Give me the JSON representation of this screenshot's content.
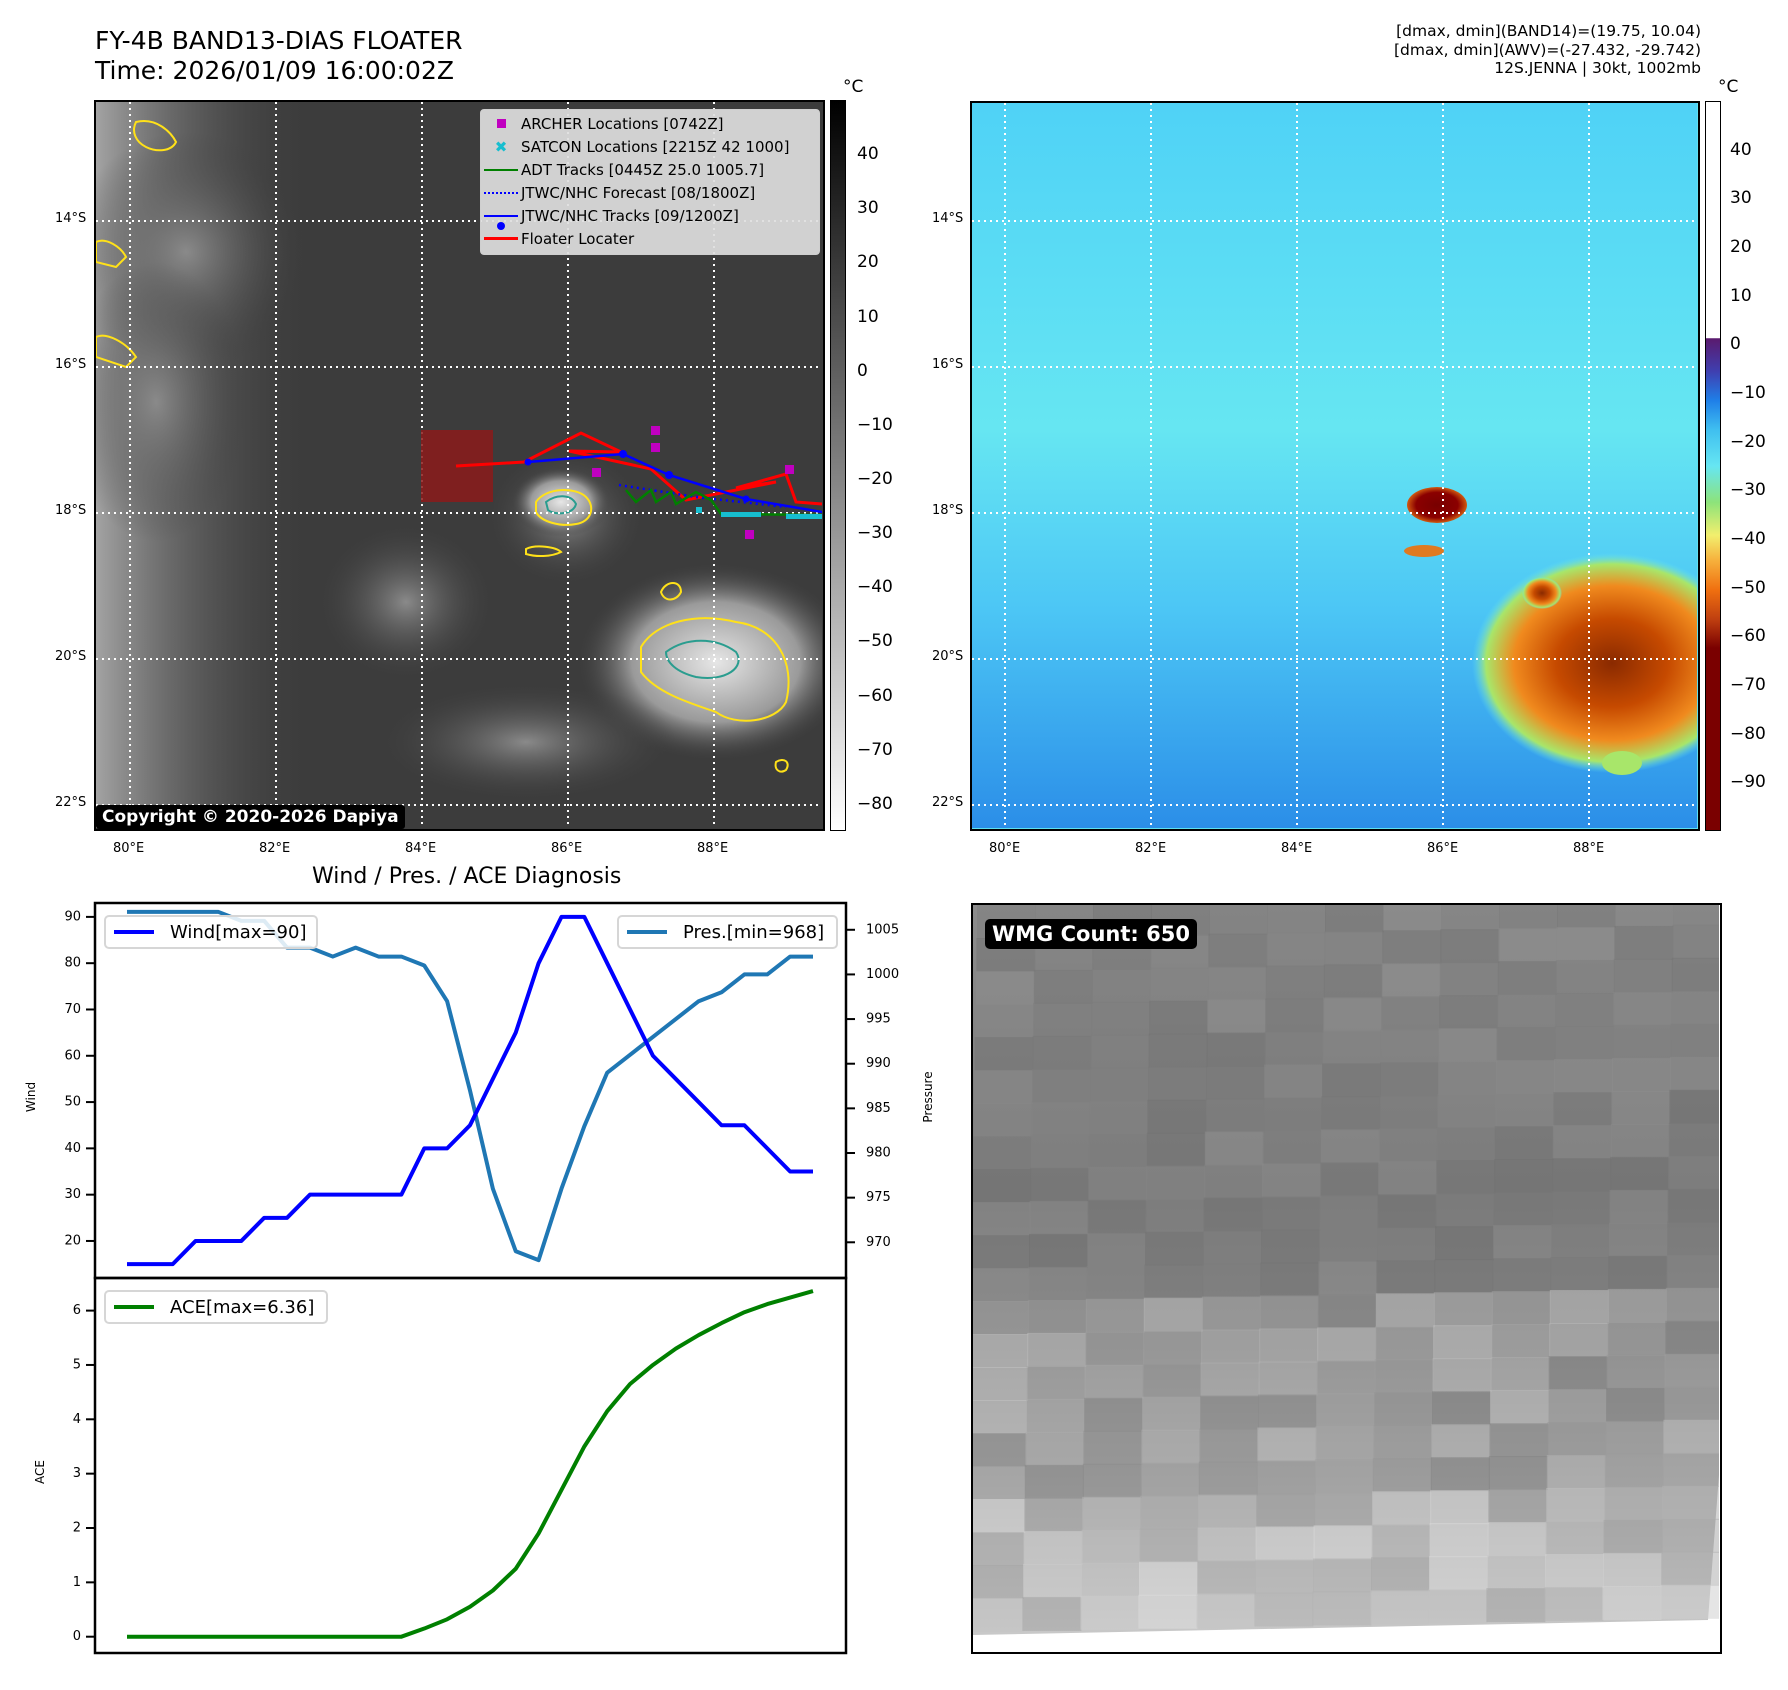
{
  "header": {
    "title_line1": "FY-4B BAND13-DIAS FLOATER",
    "title_line2": "Time: 2026/01/09 16:00:02Z",
    "info_line1": "[dmax, dmin](BAND14)=(19.75, 10.04)",
    "info_line2": "[dmax, dmin](AWV)=(-27.432, -29.742)",
    "info_line3": "12S.JENNA | 30kt, 1002mb"
  },
  "maps": {
    "lat_labels": [
      "14°S",
      "16°S",
      "18°S",
      "20°S",
      "22°S"
    ],
    "lon_labels": [
      "80°E",
      "82°E",
      "84°E",
      "86°E",
      "88°E"
    ],
    "copyright": "Copyright © 2020-2026 Dapiya",
    "ir_colorbar": {
      "unit": "°C",
      "ticks": [
        "40",
        "30",
        "20",
        "10",
        "0",
        "−10",
        "−20",
        "−30",
        "−40",
        "−50",
        "−60",
        "−70",
        "−80"
      ],
      "range": [
        50,
        -85
      ]
    },
    "enhanced_colorbar": {
      "unit": "°C",
      "ticks": [
        "40",
        "30",
        "20",
        "10",
        "0",
        "−10",
        "−20",
        "−30",
        "−40",
        "−50",
        "−60",
        "−70",
        "−80",
        "−90"
      ],
      "range": [
        50,
        -100
      ]
    },
    "legend": [
      {
        "label": "ARCHER Locations [0742Z]",
        "symbol": "square",
        "color": "#c000c0"
      },
      {
        "label": "SATCON Locations [2215Z 42 1000]",
        "symbol": "x",
        "color": "#17becf"
      },
      {
        "label": "ADT Tracks [0445Z 25.0 1005.7]",
        "symbol": "line",
        "color": "#008000"
      },
      {
        "label": "JTWC/NHC Forecast [08/1800Z]",
        "symbol": "dotted",
        "color": "#0000ff"
      },
      {
        "label": "JTWC/NHC Tracks [09/1200Z]",
        "symbol": "line-dot",
        "color": "#0000ff"
      },
      {
        "label": "Floater Locater",
        "symbol": "line",
        "color": "#ff0000"
      }
    ]
  },
  "diagnosis": {
    "title": "Wind / Pres. / ACE Diagnosis",
    "wmg_label": "WMG Count: 650"
  },
  "chart_data": [
    {
      "type": "line",
      "title": "Wind / Pres. / ACE Diagnosis",
      "ylabel": "Wind",
      "ylabel_right": "Pressure",
      "ylim": [
        12,
        93
      ],
      "ylim_right": [
        966,
        1008
      ],
      "yticks": [
        20,
        30,
        40,
        50,
        60,
        70,
        80,
        90
      ],
      "yticks_right": [
        970,
        975,
        980,
        985,
        990,
        995,
        1000,
        1005
      ],
      "x": [
        0,
        1,
        2,
        3,
        4,
        5,
        6,
        7,
        8,
        9,
        10,
        11,
        12,
        13,
        14,
        15,
        16,
        17,
        18,
        19,
        20,
        21,
        22,
        23,
        24,
        25,
        26,
        27,
        28,
        29,
        30
      ],
      "series": [
        {
          "name": "Wind[max=90]",
          "axis": "left",
          "color": "#0000ff",
          "values": [
            15,
            15,
            15,
            20,
            20,
            20,
            25,
            25,
            30,
            30,
            30,
            30,
            30,
            40,
            40,
            45,
            55,
            65,
            80,
            90,
            90,
            80,
            70,
            60,
            55,
            50,
            45,
            45,
            40,
            35,
            35
          ]
        },
        {
          "name": "Pres.[min=968]",
          "axis": "right",
          "color": "#1f77b4",
          "values": [
            1007,
            1007,
            1007,
            1007,
            1007,
            1006,
            1006,
            1003,
            1003,
            1002,
            1003,
            1002,
            1002,
            1001,
            997,
            987,
            976,
            969,
            968,
            976,
            983,
            989,
            991,
            993,
            995,
            997,
            998,
            1000,
            1000,
            1002,
            1002
          ]
        }
      ],
      "legend": [
        "top-left",
        "top-right"
      ]
    },
    {
      "type": "line",
      "ylabel": "ACE",
      "ylim": [
        -0.3,
        6.6
      ],
      "yticks": [
        0,
        1,
        2,
        3,
        4,
        5,
        6
      ],
      "x": [
        0,
        1,
        2,
        3,
        4,
        5,
        6,
        7,
        8,
        9,
        10,
        11,
        12,
        13,
        14,
        15,
        16,
        17,
        18,
        19,
        20,
        21,
        22,
        23,
        24,
        25,
        26,
        27,
        28,
        29,
        30
      ],
      "series": [
        {
          "name": "ACE[max=6.36]",
          "color": "#008000",
          "values": [
            0,
            0,
            0,
            0,
            0,
            0,
            0,
            0,
            0,
            0,
            0,
            0,
            0,
            0.15,
            0.32,
            0.55,
            0.85,
            1.25,
            1.9,
            2.7,
            3.5,
            4.15,
            4.65,
            5.0,
            5.3,
            5.55,
            5.77,
            5.97,
            6.12,
            6.24,
            6.36
          ]
        }
      ],
      "legend": "top-left"
    }
  ]
}
